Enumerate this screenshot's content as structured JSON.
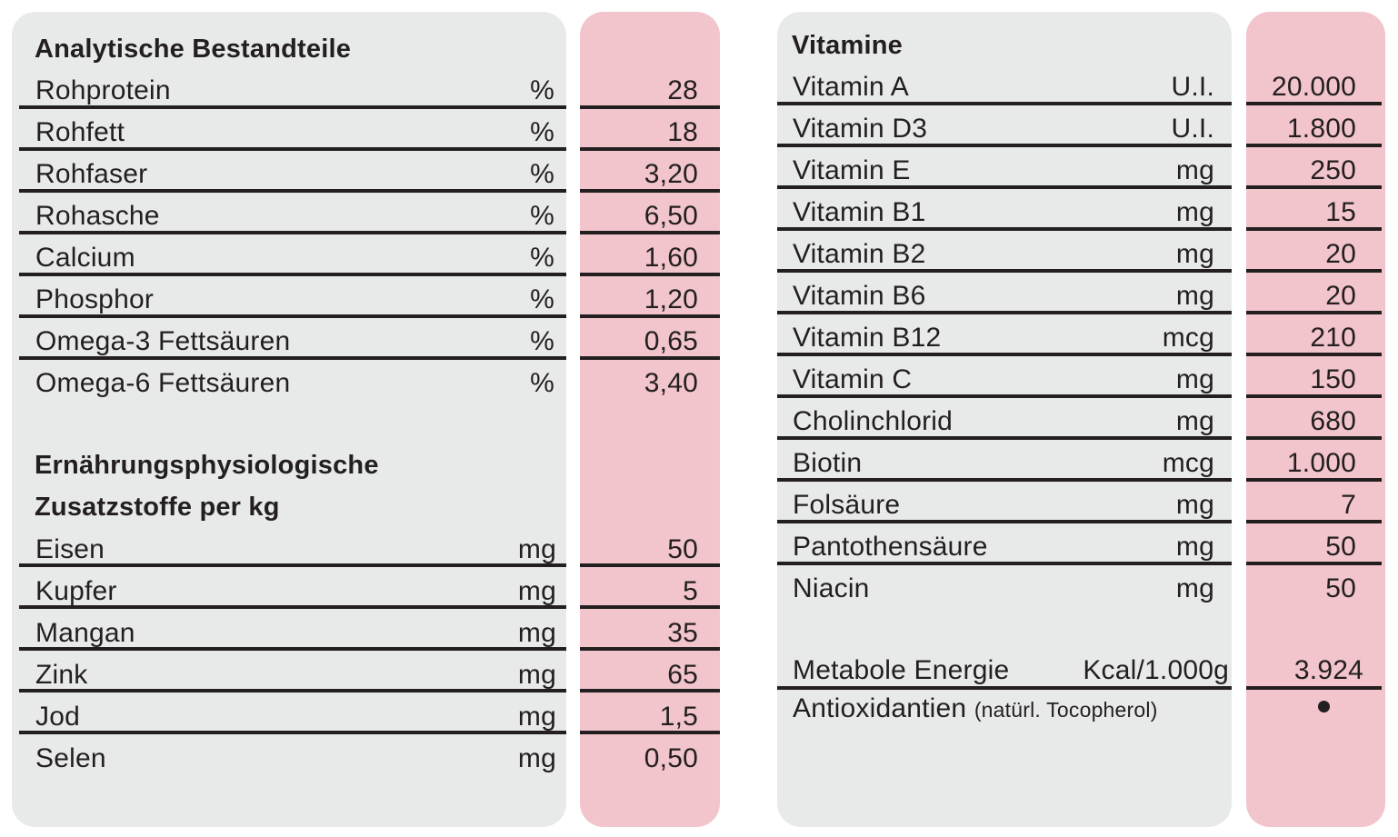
{
  "left": {
    "heading": "Analytische Bestandteile",
    "analytic_rows": [
      {
        "name": "Rohprotein",
        "unit": "%",
        "value": "28"
      },
      {
        "name": "Rohfett",
        "unit": "%",
        "value": "18"
      },
      {
        "name": "Rohfaser",
        "unit": "%",
        "value": "3,20"
      },
      {
        "name": "Rohasche",
        "unit": "%",
        "value": "6,50"
      },
      {
        "name": "Calcium",
        "unit": "%",
        "value": "1,60"
      },
      {
        "name": "Phosphor",
        "unit": "%",
        "value": "1,20"
      },
      {
        "name": "Omega-3 Fettsäuren",
        "unit": "%",
        "value": "0,65"
      },
      {
        "name": "Omega-6 Fettsäuren",
        "unit": "%",
        "value": "3,40"
      }
    ],
    "additives_heading_line1": "Ernährungsphysiologische",
    "additives_heading_line2": "Zusatzstoffe per kg",
    "additive_rows": [
      {
        "name": "Eisen",
        "unit": "mg",
        "value": "50"
      },
      {
        "name": "Kupfer",
        "unit": "mg",
        "value": "5"
      },
      {
        "name": "Mangan",
        "unit": "mg",
        "value": "35"
      },
      {
        "name": "Zink",
        "unit": "mg",
        "value": "65"
      },
      {
        "name": "Jod",
        "unit": "mg",
        "value": "1,5"
      },
      {
        "name": "Selen",
        "unit": "mg",
        "value": "0,50"
      }
    ]
  },
  "right": {
    "heading": "Vitamine",
    "vitamin_rows": [
      {
        "name": "Vitamin A",
        "unit": "U.I.",
        "value": "20.000"
      },
      {
        "name": "Vitamin D3",
        "unit": "U.I.",
        "value": "1.800"
      },
      {
        "name": "Vitamin E",
        "unit": "mg",
        "value": "250"
      },
      {
        "name": "Vitamin B1",
        "unit": "mg",
        "value": "15"
      },
      {
        "name": "Vitamin B2",
        "unit": "mg",
        "value": "20"
      },
      {
        "name": "Vitamin B6",
        "unit": "mg",
        "value": "20"
      },
      {
        "name": "Vitamin B12",
        "unit": "mcg",
        "value": "210"
      },
      {
        "name": "Vitamin C",
        "unit": "mg",
        "value": "150"
      },
      {
        "name": "Cholinchlorid",
        "unit": "mg",
        "value": "680"
      },
      {
        "name": "Biotin",
        "unit": "mcg",
        "value": "1.000"
      },
      {
        "name": "Folsäure",
        "unit": "mg",
        "value": "7"
      },
      {
        "name": "Pantothensäure",
        "unit": "mg",
        "value": "50"
      },
      {
        "name": "Niacin",
        "unit": "mg",
        "value": "50"
      }
    ],
    "energy": {
      "name": "Metabole Energie",
      "unit": "Kcal/1.000g",
      "value": "3.924"
    },
    "antioxidants": {
      "name": "Antioxidantien",
      "note": "(natürl. Tocopherol)",
      "value_icon": "bullet-dot"
    }
  },
  "colors": {
    "panel_grey": "#e8e9e9",
    "panel_pink": "#f2c4cc",
    "text": "#231f20"
  }
}
